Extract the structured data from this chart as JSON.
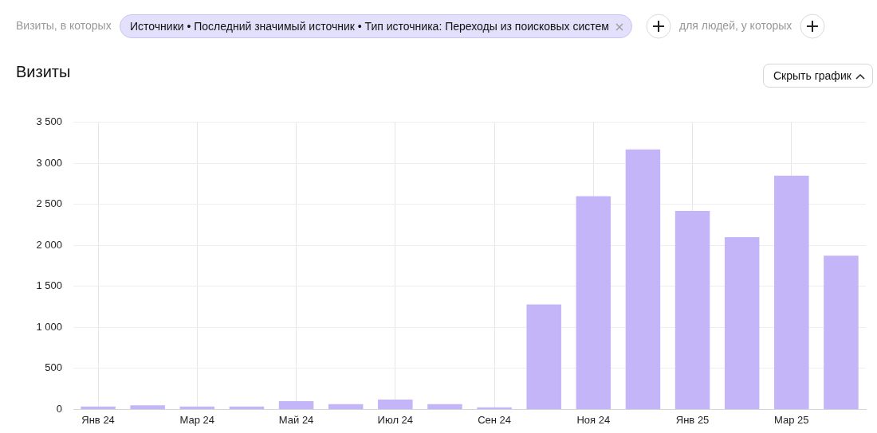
{
  "chart_data": {
    "type": "bar",
    "title": "Визиты",
    "annotations": [
      "Визиты, в которых",
      "Источники • Последний значимый источник • Тип источника: Переходы из поисковых систем",
      "для людей, у которых",
      "Скрыть график"
    ],
    "categories": [
      "Янв 24",
      null,
      "Мар 24",
      null,
      "Май 24",
      null,
      "Июл 24",
      null,
      "Сен 24",
      null,
      "Ноя 24",
      null,
      "Янв 25",
      null,
      "Мар 25",
      null
    ],
    "values": [
      35,
      50,
      35,
      35,
      100,
      65,
      120,
      65,
      25,
      1280,
      2600,
      3170,
      2420,
      2100,
      2850,
      1875
    ],
    "color": "#c4b5f9",
    "ylim": [
      0,
      3500
    ],
    "yticks": [
      0,
      500,
      {
        "value": 1000,
        "label": "1 000"
      },
      {
        "value": 1500,
        "label": "1 500"
      },
      {
        "value": 2000,
        "label": "2 000"
      },
      {
        "value": 2500,
        "label": "2 500"
      },
      {
        "value": 3000,
        "label": "3 000"
      },
      {
        "value": 3500,
        "label": "3 500"
      }
    ],
    "grid": true,
    "legend": false
  }
}
